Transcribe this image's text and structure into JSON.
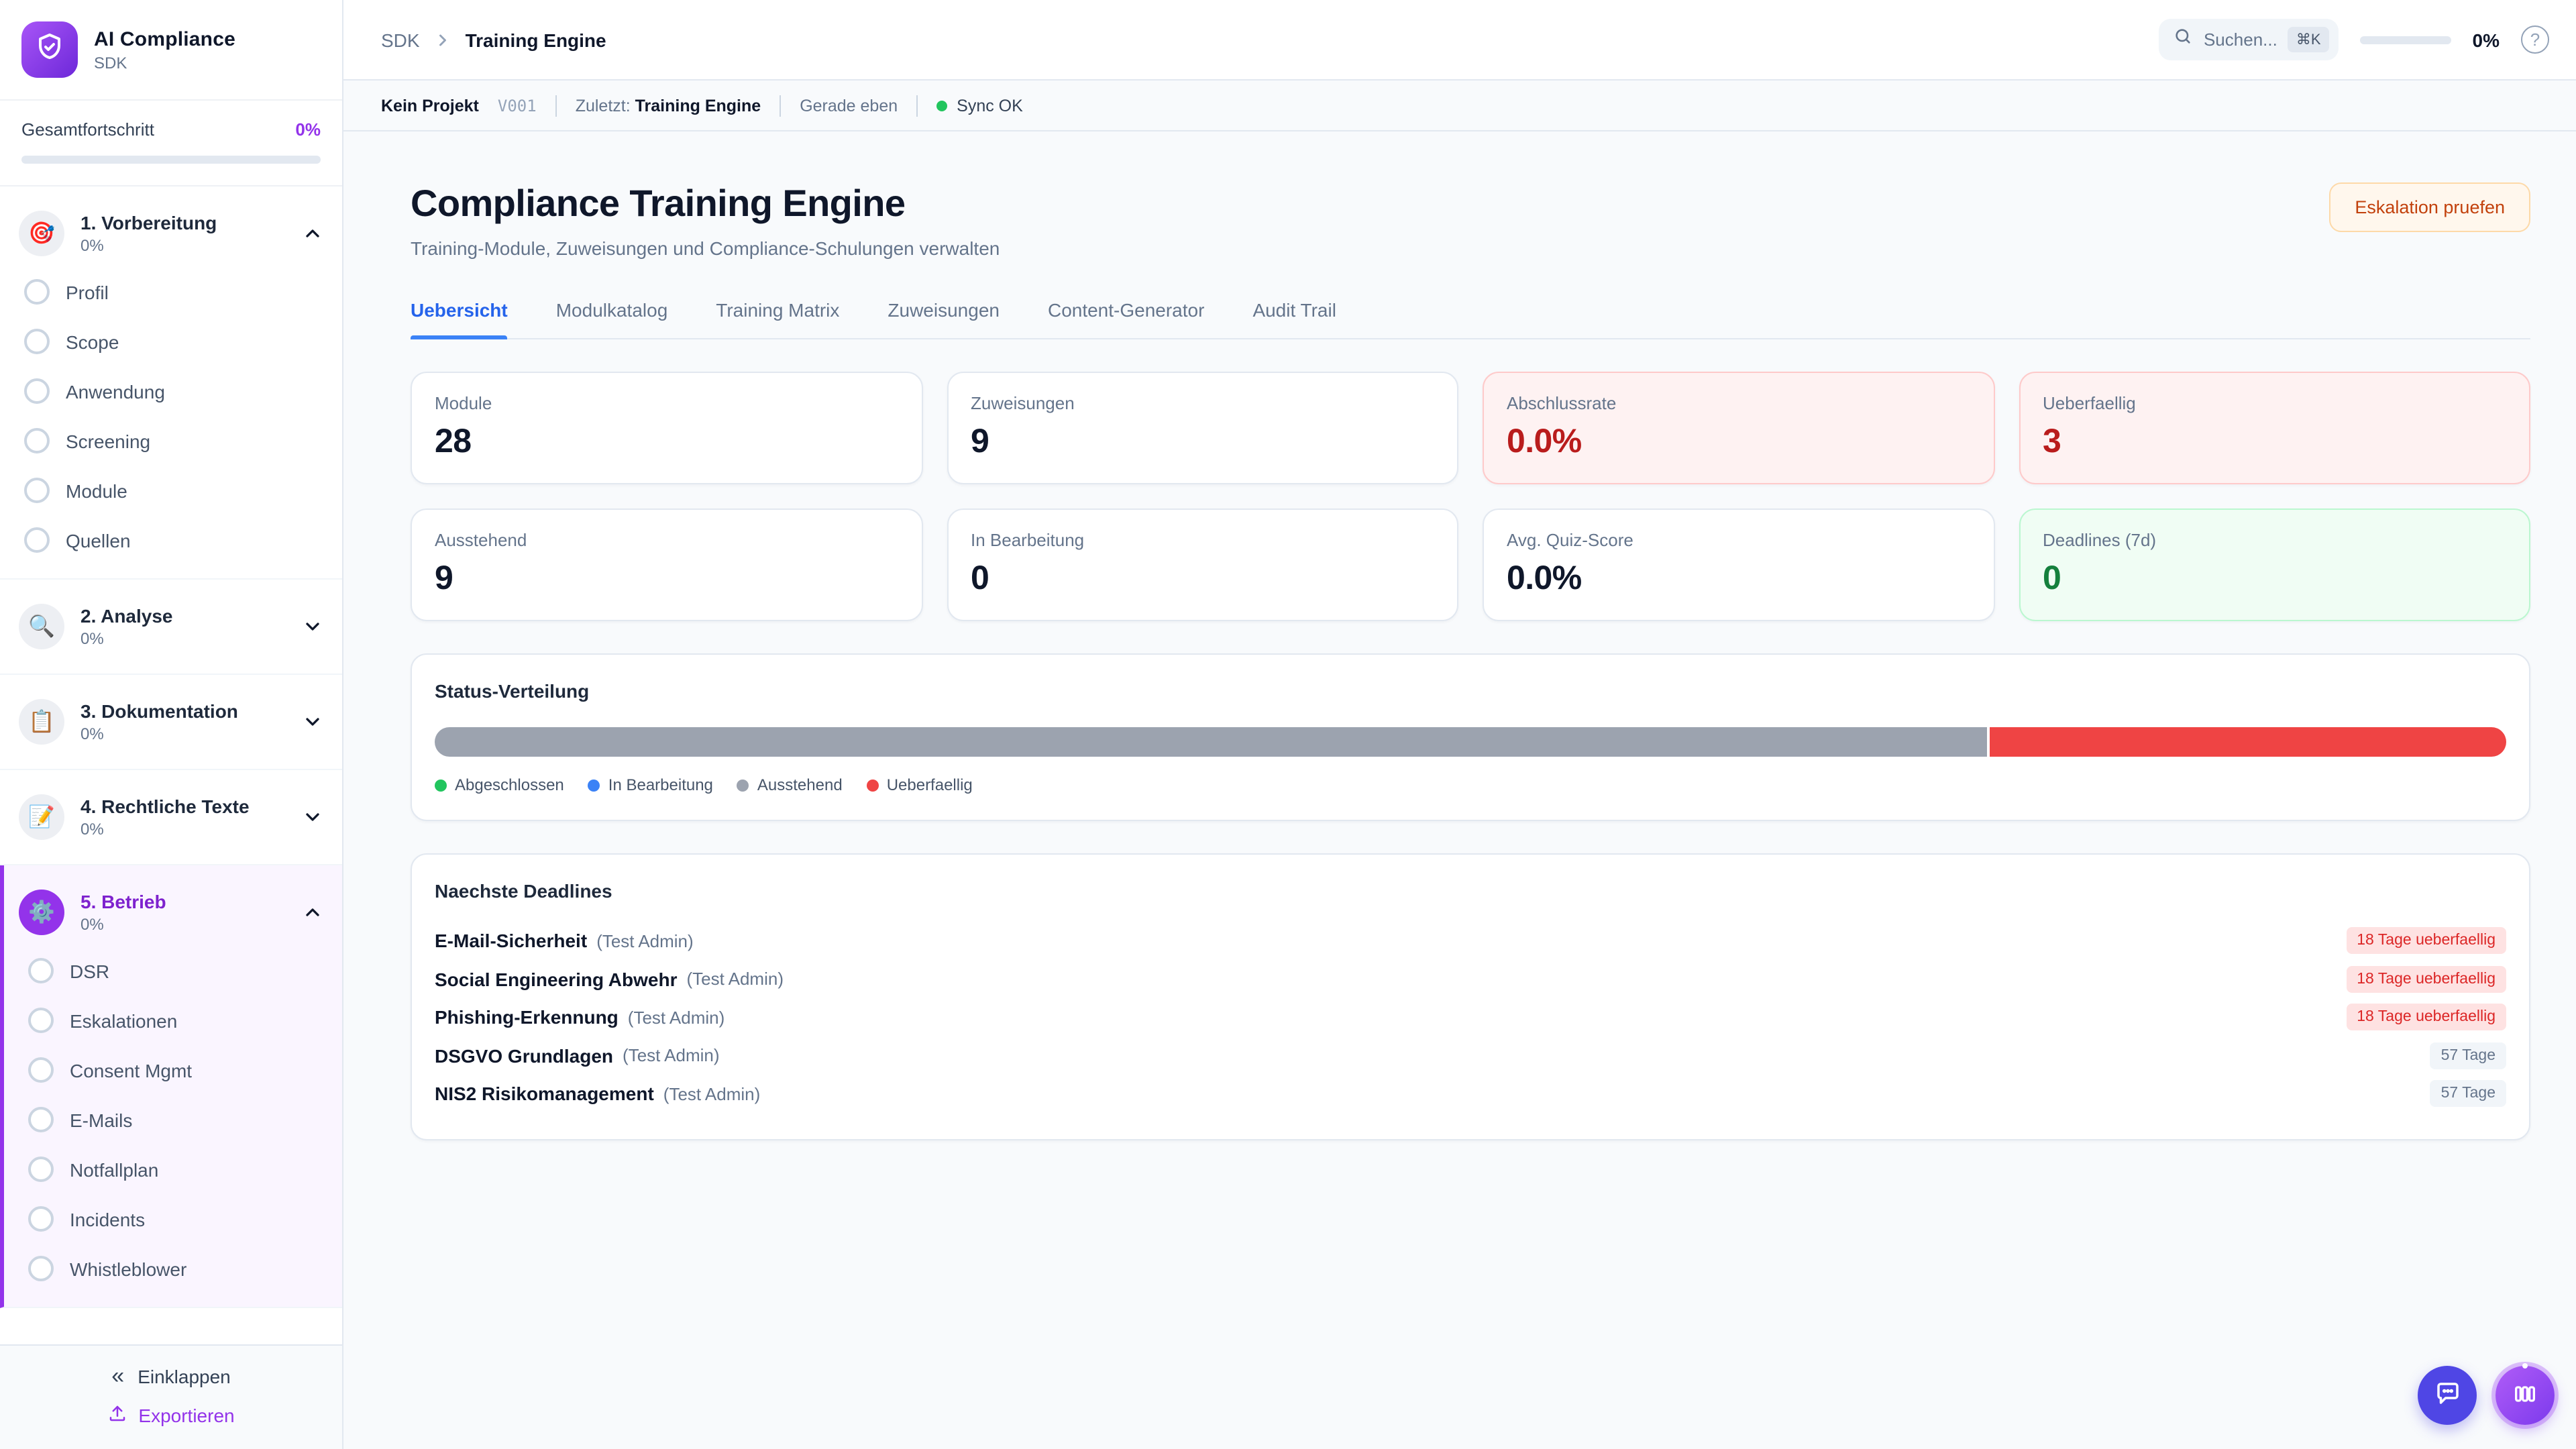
{
  "colors": {
    "accent_purple": "#9333EA",
    "active_tab_blue": "#2563EB",
    "danger_red": "#B91C1C",
    "success_green": "#15803D",
    "warn_orange": "#C2410C",
    "sync_green": "#22C55E"
  },
  "sidebar": {
    "logo_icon": "shield-check-icon",
    "title": "AI Compliance",
    "subtitle": "SDK",
    "progress_label": "Gesamtfortschritt",
    "progress_value": "0%",
    "sections": [
      {
        "label": "1. Vorbereitung",
        "percent": "0%",
        "icon": "🎯",
        "expanded": true,
        "items": [
          "Profil",
          "Scope",
          "Anwendung",
          "Screening",
          "Module",
          "Quellen"
        ]
      },
      {
        "label": "2. Analyse",
        "percent": "0%",
        "icon": "🔍",
        "expanded": false
      },
      {
        "label": "3. Dokumentation",
        "percent": "0%",
        "icon": "📋",
        "expanded": false
      },
      {
        "label": "4. Rechtliche Texte",
        "percent": "0%",
        "icon": "📝",
        "expanded": false
      },
      {
        "label": "5. Betrieb",
        "percent": "0%",
        "icon": "⚙️",
        "expanded": true,
        "active": true,
        "items": [
          "DSR",
          "Eskalationen",
          "Consent Mgmt",
          "E-Mails",
          "Notfallplan",
          "Incidents",
          "Whistleblower"
        ]
      }
    ],
    "collapse_label": "Einklappen",
    "collapse_icon": "«",
    "export_label": "Exportieren"
  },
  "topbar": {
    "breadcrumb_root": "SDK",
    "breadcrumb_current": "Training Engine",
    "search_placeholder": "Suchen...",
    "search_shortcut": "⌘K",
    "progress_value": "0%"
  },
  "statusbar": {
    "project": "Kein Projekt",
    "version": "V001",
    "last_label": "Zuletzt:",
    "last_value": "Training Engine",
    "updated": "Gerade eben",
    "sync_status": "Sync OK"
  },
  "main": {
    "title": "Compliance Training Engine",
    "subtitle": "Training-Module, Zuweisungen und Compliance-Schulungen verwalten",
    "action_button": "Eskalation pruefen",
    "tabs": [
      {
        "label": "Uebersicht",
        "active": true
      },
      {
        "label": "Modulkatalog",
        "active": false
      },
      {
        "label": "Training Matrix",
        "active": false
      },
      {
        "label": "Zuweisungen",
        "active": false
      },
      {
        "label": "Content-Generator",
        "active": false
      },
      {
        "label": "Audit Trail",
        "active": false
      }
    ],
    "stats": [
      {
        "label": "Module",
        "value": "28",
        "variant": "default"
      },
      {
        "label": "Zuweisungen",
        "value": "9",
        "variant": "default"
      },
      {
        "label": "Abschlussrate",
        "value": "0.0%",
        "variant": "danger"
      },
      {
        "label": "Ueberfaellig",
        "value": "3",
        "variant": "danger"
      },
      {
        "label": "Ausstehend",
        "value": "9",
        "variant": "default"
      },
      {
        "label": "In Bearbeitung",
        "value": "0",
        "variant": "default"
      },
      {
        "label": "Avg. Quiz-Score",
        "value": "0.0%",
        "variant": "default"
      },
      {
        "label": "Deadlines (7d)",
        "value": "0",
        "variant": "success"
      }
    ],
    "status_chart": {
      "type": "bar",
      "title": "Status-Verteilung",
      "segments": [
        {
          "key": "abgeschlossen",
          "label": "Abgeschlossen",
          "value": 0,
          "color": "#22C55E"
        },
        {
          "key": "in-bearbeitung",
          "label": "In Bearbeitung",
          "value": 0,
          "color": "#3B82F6"
        },
        {
          "key": "ausstehend",
          "label": "Ausstehend",
          "value": 9,
          "color": "#9CA3AF"
        },
        {
          "key": "ueberfaellig",
          "label": "Ueberfaellig",
          "value": 3,
          "color": "#EF4444"
        }
      ]
    },
    "deadlines": {
      "title": "Naechste Deadlines",
      "rows": [
        {
          "name": "E-Mail-Sicherheit",
          "assignee": "(Test Admin)",
          "badge": "18 Tage ueberfaellig",
          "badge_variant": "danger"
        },
        {
          "name": "Social Engineering Abwehr",
          "assignee": "(Test Admin)",
          "badge": "18 Tage ueberfaellig",
          "badge_variant": "danger"
        },
        {
          "name": "Phishing-Erkennung",
          "assignee": "(Test Admin)",
          "badge": "18 Tage ueberfaellig",
          "badge_variant": "danger"
        },
        {
          "name": "DSGVO Grundlagen",
          "assignee": "(Test Admin)",
          "badge": "57 Tage",
          "badge_variant": "neutral"
        },
        {
          "name": "NIS2 Risikomanagement",
          "assignee": "(Test Admin)",
          "badge": "57 Tage",
          "badge_variant": "neutral"
        }
      ]
    }
  }
}
